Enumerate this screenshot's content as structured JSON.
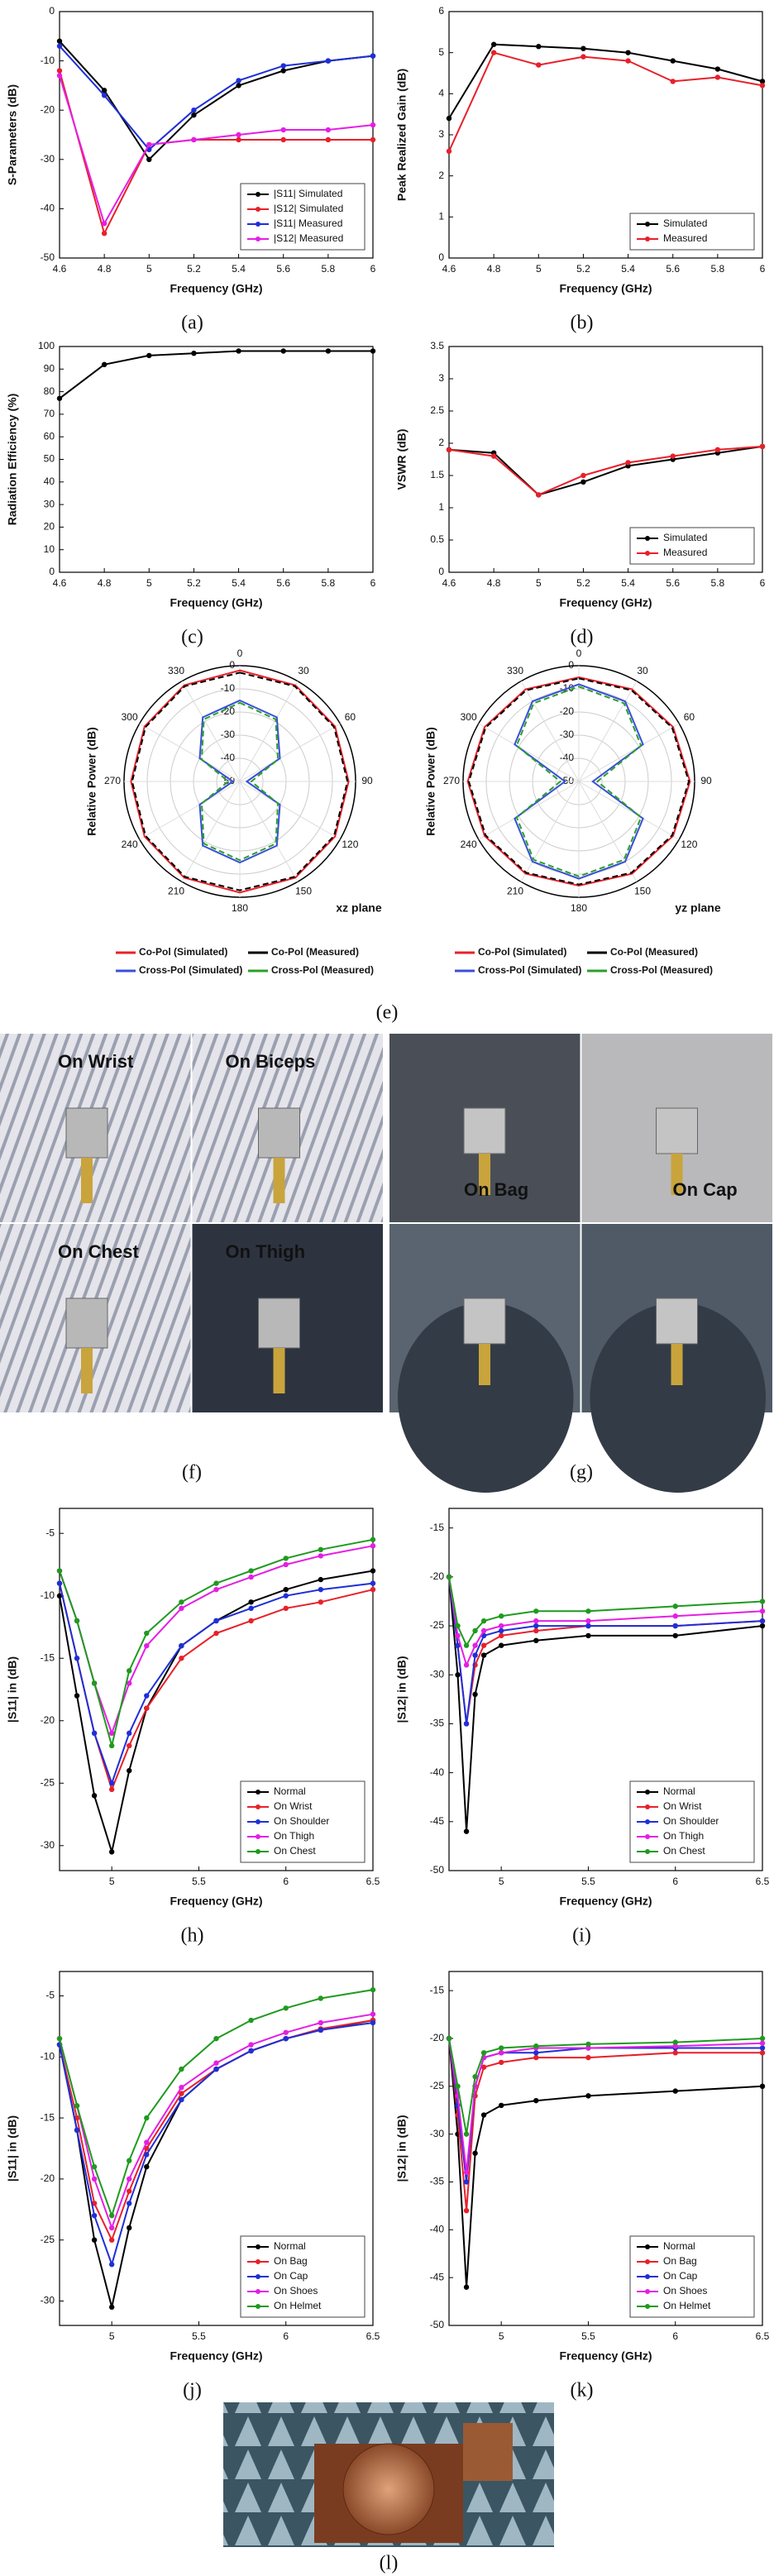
{
  "chart_data": [
    {
      "type": "line",
      "caption": "(a)",
      "xlabel": "Frequency (GHz)",
      "ylabel": "S-Parameters (dB)",
      "x": [
        4.6,
        4.8,
        5.0,
        5.2,
        5.4,
        5.6,
        5.8,
        6.0
      ],
      "xlim": [
        4.6,
        6.0
      ],
      "xticks": [
        4.6,
        4.8,
        5.0,
        5.2,
        5.4,
        5.6,
        5.8,
        6.0
      ],
      "ylim": [
        -50,
        0
      ],
      "yticks": [
        0,
        -10,
        -20,
        -30,
        -40,
        -50
      ],
      "legend": "lower right",
      "series": [
        {
          "name": "|S11| Simulated",
          "color": "#000000",
          "values": [
            -6,
            -16,
            -30,
            -21,
            -15,
            -12,
            -10,
            -9
          ]
        },
        {
          "name": "|S12| Simulated",
          "color": "#e8202a",
          "values": [
            -12,
            -45,
            -27,
            -26,
            -26,
            -26,
            -26,
            -26
          ]
        },
        {
          "name": "|S11| Measured",
          "color": "#1f2fd8",
          "values": [
            -7,
            -17,
            -28,
            -20,
            -14,
            -11,
            -10,
            -9
          ]
        },
        {
          "name": "|S12| Measured",
          "color": "#e51ee5",
          "values": [
            -13,
            -43,
            -27,
            -26,
            -25,
            -24,
            -24,
            -23
          ]
        }
      ]
    },
    {
      "type": "line",
      "caption": "(b)",
      "xlabel": "Frequency (GHz)",
      "ylabel": "Peak Realized Gain (dB)",
      "x": [
        4.6,
        4.8,
        5.0,
        5.2,
        5.4,
        5.6,
        5.8,
        6.0
      ],
      "xlim": [
        4.6,
        6.0
      ],
      "xticks": [
        4.6,
        4.8,
        5.0,
        5.2,
        5.4,
        5.6,
        5.8,
        6.0
      ],
      "ylim": [
        0,
        6
      ],
      "yticks": [
        0,
        1,
        2,
        3,
        4,
        5,
        6
      ],
      "legend": "lower right",
      "series": [
        {
          "name": "Simulated",
          "color": "#000000",
          "values": [
            3.4,
            5.2,
            5.15,
            5.1,
            5.0,
            4.8,
            4.6,
            4.3
          ]
        },
        {
          "name": "Measured",
          "color": "#e8202a",
          "values": [
            2.6,
            5.0,
            4.7,
            4.9,
            4.8,
            4.3,
            4.4,
            4.2
          ]
        }
      ]
    },
    {
      "type": "line",
      "caption": "(c)",
      "xlabel": "Frequency (GHz)",
      "ylabel": "Radiation Efficiency (%)",
      "x": [
        4.6,
        4.8,
        5.0,
        5.2,
        5.4,
        5.6,
        5.8,
        6.0
      ],
      "xlim": [
        4.6,
        6.0
      ],
      "xticks": [
        4.6,
        4.8,
        5.0,
        5.2,
        5.4,
        5.6,
        5.8,
        6.0
      ],
      "ylim": [
        0,
        100
      ],
      "yticks": [
        0,
        10,
        20,
        30,
        40,
        50,
        60,
        70,
        80,
        90,
        100
      ],
      "color": "#000000",
      "values": [
        77,
        92,
        96,
        97,
        98,
        98,
        98,
        98
      ]
    },
    {
      "type": "line",
      "caption": "(d)",
      "xlabel": "Frequency (GHz)",
      "ylabel": "VSWR (dB)",
      "x": [
        4.6,
        4.8,
        5.0,
        5.2,
        5.4,
        5.6,
        5.8,
        6.0
      ],
      "xlim": [
        4.6,
        6.0
      ],
      "xticks": [
        4.6,
        4.8,
        5.0,
        5.2,
        5.4,
        5.6,
        5.8,
        6.0
      ],
      "ylim": [
        0,
        3.5
      ],
      "yticks": [
        0,
        0.5,
        1,
        1.5,
        2,
        2.5,
        3,
        3.5
      ],
      "legend": "lower right",
      "series": [
        {
          "name": "Simulated",
          "color": "#000000",
          "values": [
            1.9,
            1.85,
            1.2,
            1.4,
            1.65,
            1.75,
            1.85,
            1.95
          ]
        },
        {
          "name": "Measured",
          "color": "#e8202a",
          "values": [
            1.9,
            1.8,
            1.2,
            1.5,
            1.7,
            1.8,
            1.9,
            1.95
          ]
        }
      ]
    },
    {
      "type": "polar",
      "caption": "(e)",
      "ylabel": "Relative Power (dB)",
      "plane": "xz plane",
      "angles": [
        0,
        30,
        60,
        90,
        120,
        150,
        180,
        210,
        240,
        270,
        300,
        330
      ],
      "rlim": [
        -50,
        0
      ],
      "rticks": [
        0,
        -10,
        -20,
        -30,
        -40,
        -50
      ],
      "legend": "bottom",
      "series": [
        {
          "name": "Co-Pol (Simulated)",
          "color": "#e8202a",
          "style": "solid",
          "values": [
            -2,
            -2,
            -2.5,
            -3,
            -2.5,
            -2,
            -2,
            -2,
            -2.5,
            -3,
            -2.5,
            -2
          ]
        },
        {
          "name": "Co-Pol (Measured)",
          "color": "#000000",
          "style": "dashed",
          "values": [
            -3,
            -2.5,
            -3,
            -3.5,
            -3,
            -2.5,
            -3,
            -2.5,
            -3,
            -3.5,
            -3,
            -2.5
          ]
        },
        {
          "name": "Cross-Pol (Simulated)",
          "color": "#3a4fd8",
          "style": "solid",
          "values": [
            -15,
            -18,
            -30,
            -47,
            -30,
            -18,
            -15,
            -18,
            -30,
            -47,
            -30,
            -18
          ]
        },
        {
          "name": "Cross-Pol (Measured)",
          "color": "#2aa02a",
          "style": "dashed",
          "values": [
            -16,
            -19,
            -31,
            -45,
            -31,
            -19,
            -16,
            -19,
            -31,
            -45,
            -31,
            -19
          ]
        }
      ]
    },
    {
      "type": "polar",
      "ylabel": "Relative Power (dB)",
      "plane": "yz plane",
      "angles": [
        0,
        30,
        60,
        90,
        120,
        150,
        180,
        210,
        240,
        270,
        300,
        330
      ],
      "rlim": [
        -50,
        0
      ],
      "rticks": [
        0,
        -10,
        -20,
        -30,
        -40,
        -50
      ],
      "legend": "bottom",
      "series": [
        {
          "name": "Co-Pol (Simulated)",
          "color": "#e8202a",
          "style": "solid",
          "values": [
            -5,
            -4,
            -3,
            -2,
            -3,
            -4,
            -5,
            -4,
            -3,
            -2,
            -3,
            -4
          ]
        },
        {
          "name": "Co-Pol (Measured)",
          "color": "#000000",
          "style": "dashed",
          "values": [
            -5.5,
            -4.5,
            -3.5,
            -2.5,
            -3.5,
            -4.5,
            -5.5,
            -4.5,
            -3.5,
            -2.5,
            -3.5,
            -4.5
          ]
        },
        {
          "name": "Cross-Pol (Simulated)",
          "color": "#3a4fd8",
          "style": "solid",
          "values": [
            -8,
            -10,
            -18,
            -44,
            -18,
            -10,
            -8,
            -10,
            -18,
            -44,
            -18,
            -10
          ]
        },
        {
          "name": "Cross-Pol (Measured)",
          "color": "#2aa02a",
          "style": "dashed",
          "values": [
            -9,
            -11,
            -19,
            -42,
            -19,
            -11,
            -9,
            -11,
            -19,
            -42,
            -19,
            -11
          ]
        }
      ]
    },
    {
      "type": "line",
      "caption": "(h)",
      "xlabel": "Frequency (GHz)",
      "ylabel": "|S11| in (dB)",
      "x": [
        4.7,
        4.8,
        4.9,
        5.0,
        5.1,
        5.2,
        5.4,
        5.6,
        5.8,
        6.0,
        6.2,
        6.5
      ],
      "xlim": [
        4.7,
        6.5
      ],
      "xticks": [
        5.0,
        5.5,
        6.0,
        6.5
      ],
      "ylim": [
        -32,
        -3
      ],
      "yticks": [
        -30,
        -25,
        -20,
        -15,
        -10,
        -5
      ],
      "legend": "lower right",
      "series": [
        {
          "name": "Normal",
          "color": "#000000",
          "values": [
            -10,
            -18,
            -26,
            -30.5,
            -24,
            -19,
            -14,
            -12,
            -10.5,
            -9.5,
            -8.7,
            -8
          ]
        },
        {
          "name": "On Wrist",
          "color": "#e8202a",
          "values": [
            -9,
            -15,
            -21,
            -25.5,
            -22,
            -19,
            -15,
            -13,
            -12,
            -11,
            -10.5,
            -9.5
          ]
        },
        {
          "name": "On Shoulder",
          "color": "#1f2fd8",
          "values": [
            -9,
            -15,
            -21,
            -25,
            -21,
            -18,
            -14,
            -12,
            -11,
            -10,
            -9.5,
            -9
          ]
        },
        {
          "name": "On Thigh",
          "color": "#e51ee5",
          "values": [
            -8,
            -12,
            -17,
            -21,
            -17,
            -14,
            -11,
            -9.5,
            -8.5,
            -7.5,
            -6.8,
            -6
          ]
        },
        {
          "name": "On Chest",
          "color": "#1f9a1f",
          "values": [
            -8,
            -12,
            -17,
            -22,
            -16,
            -13,
            -10.5,
            -9,
            -8,
            -7,
            -6.3,
            -5.5
          ]
        }
      ]
    },
    {
      "type": "line",
      "caption": "(i)",
      "xlabel": "Frequency (GHz)",
      "ylabel": "|S12| in (dB)",
      "x": [
        4.7,
        4.75,
        4.8,
        4.85,
        4.9,
        5.0,
        5.2,
        5.5,
        6.0,
        6.5
      ],
      "xlim": [
        4.7,
        6.5
      ],
      "xticks": [
        5.0,
        5.5,
        6.0,
        6.5
      ],
      "ylim": [
        -50,
        -13
      ],
      "yticks": [
        -50,
        -45,
        -40,
        -35,
        -30,
        -25,
        -20,
        -15
      ],
      "legend": "lower right",
      "series": [
        {
          "name": "Normal",
          "color": "#000000",
          "values": [
            -20,
            -30,
            -46,
            -32,
            -28,
            -27,
            -26.5,
            -26,
            -26,
            -25
          ]
        },
        {
          "name": "On Wrist",
          "color": "#e8202a",
          "values": [
            -20,
            -27,
            -35,
            -29,
            -27,
            -26,
            -25.5,
            -25,
            -25,
            -24.5
          ]
        },
        {
          "name": "On Shoulder",
          "color": "#1f2fd8",
          "values": [
            -20,
            -27,
            -35,
            -28,
            -26,
            -25.5,
            -25,
            -25,
            -25,
            -24.5
          ]
        },
        {
          "name": "On Thigh",
          "color": "#e51ee5",
          "values": [
            -20,
            -26,
            -29,
            -27,
            -25.5,
            -25,
            -24.5,
            -24.5,
            -24,
            -23.5
          ]
        },
        {
          "name": "On Chest",
          "color": "#1f9a1f",
          "values": [
            -20,
            -25,
            -27,
            -25.5,
            -24.5,
            -24,
            -23.5,
            -23.5,
            -23,
            -22.5
          ]
        }
      ]
    },
    {
      "type": "line",
      "caption": "(j)",
      "xlabel": "Frequency (GHz)",
      "ylabel": "|S11| in (dB)",
      "x": [
        4.7,
        4.8,
        4.9,
        5.0,
        5.1,
        5.2,
        5.4,
        5.6,
        5.8,
        6.0,
        6.2,
        6.5
      ],
      "xlim": [
        4.7,
        6.5
      ],
      "xticks": [
        5.0,
        5.5,
        6.0,
        6.5
      ],
      "ylim": [
        -32,
        -3
      ],
      "yticks": [
        -30,
        -25,
        -20,
        -15,
        -10,
        -5
      ],
      "legend": "lower right",
      "series": [
        {
          "name": "Normal",
          "color": "#000000",
          "values": [
            -9,
            -16,
            -25,
            -30.5,
            -24,
            -19,
            -13.5,
            -11,
            -9.5,
            -8.5,
            -7.8,
            -7
          ]
        },
        {
          "name": "On Bag",
          "color": "#e8202a",
          "values": [
            -9,
            -15,
            -22,
            -25,
            -21,
            -17.5,
            -13,
            -11,
            -9.5,
            -8.5,
            -7.7,
            -7
          ]
        },
        {
          "name": "On Cap",
          "color": "#1f2fd8",
          "values": [
            -9,
            -16,
            -23,
            -27,
            -22,
            -18,
            -13.5,
            -11,
            -9.5,
            -8.5,
            -7.8,
            -7.2
          ]
        },
        {
          "name": "On Shoes",
          "color": "#e51ee5",
          "values": [
            -8.5,
            -14,
            -20,
            -24,
            -20,
            -17,
            -12.5,
            -10.5,
            -9,
            -8,
            -7.2,
            -6.5
          ]
        },
        {
          "name": "On Helmet",
          "color": "#1f9a1f",
          "values": [
            -8.5,
            -14,
            -19,
            -23,
            -18.5,
            -15,
            -11,
            -8.5,
            -7,
            -6,
            -5.2,
            -4.5
          ]
        }
      ]
    },
    {
      "type": "line",
      "caption": "(k)",
      "xlabel": "Frequency (GHz)",
      "ylabel": "|S12| in (dB)",
      "x": [
        4.7,
        4.75,
        4.8,
        4.85,
        4.9,
        5.0,
        5.2,
        5.5,
        6.0,
        6.5
      ],
      "xlim": [
        4.7,
        6.5
      ],
      "xticks": [
        5.0,
        5.5,
        6.0,
        6.5
      ],
      "ylim": [
        -50,
        -13
      ],
      "yticks": [
        -50,
        -45,
        -40,
        -35,
        -30,
        -25,
        -20,
        -15
      ],
      "legend": "lower right",
      "series": [
        {
          "name": "Normal",
          "color": "#000000",
          "values": [
            -20,
            -30,
            -46,
            -32,
            -28,
            -27,
            -26.5,
            -26,
            -25.5,
            -25
          ]
        },
        {
          "name": "On Bag",
          "color": "#e8202a",
          "values": [
            -20,
            -28,
            -38,
            -26,
            -23,
            -22.5,
            -22,
            -22,
            -21.5,
            -21.5
          ]
        },
        {
          "name": "On Cap",
          "color": "#1f2fd8",
          "values": [
            -20,
            -27,
            -35,
            -25,
            -22,
            -21.5,
            -21.5,
            -21,
            -21,
            -21
          ]
        },
        {
          "name": "On Shoes",
          "color": "#e51ee5",
          "values": [
            -20,
            -26,
            -34,
            -25,
            -22,
            -21.5,
            -21,
            -21,
            -20.8,
            -20.5
          ]
        },
        {
          "name": "On Helmet",
          "color": "#1f9a1f",
          "values": [
            -20,
            -25,
            -30,
            -24,
            -21.5,
            -21,
            -20.8,
            -20.6,
            -20.4,
            -20
          ]
        }
      ]
    }
  ],
  "figures": [
    {
      "caption": "(f)",
      "labels": [
        "On Wrist",
        "On Biceps",
        "On Chest",
        "On Thigh"
      ]
    },
    {
      "caption": "(g)",
      "labels": [
        "On Bag",
        "On Cap"
      ]
    },
    {
      "caption": "(l)"
    }
  ]
}
